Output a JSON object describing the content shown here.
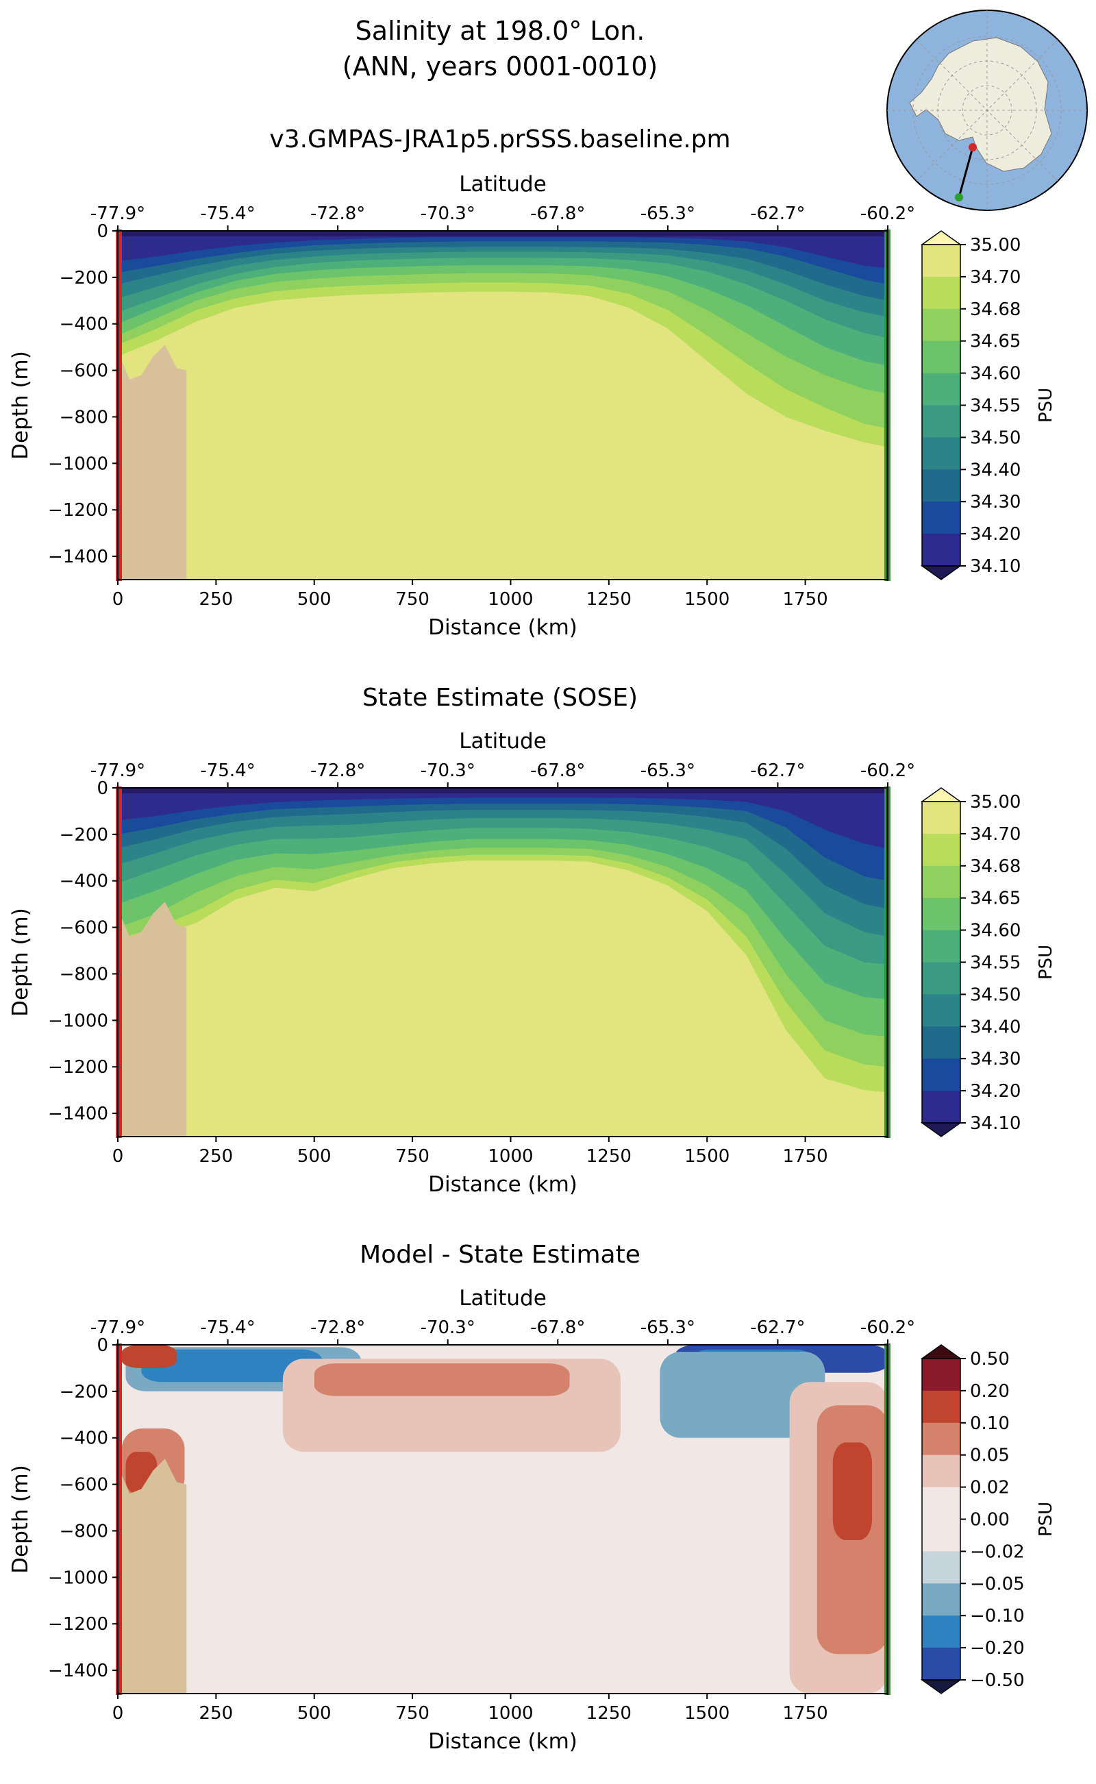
{
  "figure": {
    "title_line1": "Salinity at 198.0° Lon.",
    "title_line2": "(ANN, years 0001-0010)"
  },
  "inset_map": {
    "description_icon": "antarctica-polar-map",
    "colors": {
      "ocean": "#8eb3dd",
      "land": "#eeecdc",
      "start": "#d62728",
      "end": "#2ca02c"
    }
  },
  "axes_common": {
    "x_ticks": [
      "0",
      "250",
      "500",
      "750",
      "1000",
      "1250",
      "1500",
      "1750"
    ],
    "x_tick_values": [
      0,
      250,
      500,
      750,
      1000,
      1250,
      1500,
      1750
    ],
    "y_ticks": [
      "0",
      "−200",
      "−400",
      "−600",
      "−800",
      "−1000",
      "−1200",
      "−1400"
    ],
    "y_tick_values": [
      0,
      -200,
      -400,
      -600,
      -800,
      -1000,
      -1200,
      -1400
    ],
    "lat_ticks": [
      "-77.9°",
      "-75.4°",
      "-72.8°",
      "-70.3°",
      "-67.8°",
      "-65.3°",
      "-62.7°",
      "-60.2°"
    ],
    "lat_tick_values": [
      0,
      280,
      560,
      840,
      1120,
      1400,
      1680,
      1960
    ],
    "xlabel": "Distance (km)",
    "ylabel": "Depth (m)",
    "toplabel": "Latitude",
    "xlim": [
      0,
      1960
    ],
    "ylim": [
      -1500,
      0
    ]
  },
  "chart_data": [
    {
      "type": "heatmap",
      "title": "v3.GMPAS-JRA1p5.prSSS.baseline.pm",
      "colorbar": {
        "label": "PSU",
        "ticks": [
          "35.00",
          "34.70",
          "34.68",
          "34.65",
          "34.60",
          "34.55",
          "34.50",
          "34.40",
          "34.30",
          "34.20",
          "34.10"
        ],
        "levels": [
          35.0,
          34.7,
          34.68,
          34.65,
          34.6,
          34.55,
          34.5,
          34.4,
          34.3,
          34.2,
          34.1
        ],
        "colors": [
          "#e2e57f",
          "#b9dd5b",
          "#8fd05e",
          "#6bc36b",
          "#4db07a",
          "#3a9a82",
          "#2c8489",
          "#206a8c",
          "#1a4a9c",
          "#2d2b8e"
        ],
        "extend_top": "#fcf6b1",
        "extend_bottom": "#1f1a55"
      },
      "isohalines_depth_m": {
        "x_km": [
          0,
          100,
          200,
          300,
          400,
          500,
          600,
          700,
          800,
          900,
          1000,
          1100,
          1200,
          1300,
          1400,
          1500,
          1600,
          1700,
          1800,
          1900,
          1960
        ],
        "levels": [
          [
            -60,
            -40,
            -25,
            -15,
            -10,
            -5,
            -5,
            -5,
            -5,
            -5,
            -5,
            -5,
            -5,
            -5,
            -5,
            -8,
            -10,
            -20,
            -30,
            -45,
            -50
          ],
          [
            -130,
            -110,
            -85,
            -65,
            -50,
            -40,
            -35,
            -30,
            -28,
            -28,
            -28,
            -28,
            -28,
            -28,
            -30,
            -35,
            -45,
            -70,
            -110,
            -150,
            -160
          ],
          [
            -180,
            -150,
            -120,
            -95,
            -75,
            -62,
            -55,
            -50,
            -47,
            -45,
            -45,
            -45,
            -45,
            -47,
            -50,
            -60,
            -75,
            -110,
            -160,
            -210,
            -230
          ],
          [
            -230,
            -190,
            -150,
            -120,
            -98,
            -85,
            -77,
            -72,
            -70,
            -68,
            -68,
            -68,
            -70,
            -72,
            -78,
            -95,
            -120,
            -170,
            -230,
            -280,
            -300
          ],
          [
            -290,
            -240,
            -190,
            -150,
            -125,
            -110,
            -100,
            -95,
            -92,
            -90,
            -90,
            -90,
            -92,
            -96,
            -105,
            -130,
            -170,
            -230,
            -300,
            -350,
            -370
          ],
          [
            -350,
            -290,
            -230,
            -185,
            -155,
            -138,
            -128,
            -122,
            -118,
            -115,
            -115,
            -116,
            -118,
            -125,
            -140,
            -175,
            -230,
            -300,
            -380,
            -440,
            -460
          ],
          [
            -400,
            -330,
            -265,
            -215,
            -185,
            -170,
            -160,
            -155,
            -150,
            -148,
            -148,
            -148,
            -152,
            -165,
            -195,
            -250,
            -320,
            -410,
            -500,
            -560,
            -580
          ],
          [
            -450,
            -375,
            -300,
            -250,
            -220,
            -205,
            -195,
            -190,
            -185,
            -182,
            -182,
            -183,
            -190,
            -215,
            -260,
            -340,
            -440,
            -540,
            -620,
            -680,
            -700
          ],
          [
            -490,
            -420,
            -340,
            -290,
            -260,
            -245,
            -235,
            -230,
            -225,
            -222,
            -222,
            -225,
            -235,
            -270,
            -340,
            -450,
            -570,
            -680,
            -760,
            -830,
            -850
          ],
          [
            -540,
            -470,
            -390,
            -330,
            -300,
            -285,
            -275,
            -270,
            -265,
            -262,
            -262,
            -265,
            -280,
            -330,
            -420,
            -560,
            -700,
            -800,
            -860,
            -910,
            -930
          ]
        ]
      },
      "bathymetry_depth_m": {
        "x_km": [
          0,
          30,
          60,
          90,
          120,
          150,
          175
        ],
        "depth": [
          -520,
          -640,
          -620,
          -540,
          -490,
          -590,
          -600
        ]
      }
    },
    {
      "type": "heatmap",
      "title": "State Estimate (SOSE)",
      "colorbar": {
        "label": "PSU",
        "ticks": [
          "35.00",
          "34.70",
          "34.68",
          "34.65",
          "34.60",
          "34.55",
          "34.50",
          "34.40",
          "34.30",
          "34.20",
          "34.10"
        ],
        "levels": [
          35.0,
          34.7,
          34.68,
          34.65,
          34.6,
          34.55,
          34.5,
          34.4,
          34.3,
          34.2,
          34.1
        ],
        "colors": [
          "#e2e57f",
          "#b9dd5b",
          "#8fd05e",
          "#6bc36b",
          "#4db07a",
          "#3a9a82",
          "#2c8489",
          "#206a8c",
          "#1a4a9c",
          "#2d2b8e"
        ],
        "extend_top": "#fcf6b1",
        "extend_bottom": "#1f1a55"
      },
      "isohalines_depth_m": {
        "x_km": [
          0,
          100,
          200,
          300,
          400,
          500,
          600,
          700,
          800,
          900,
          1000,
          1100,
          1200,
          1300,
          1400,
          1500,
          1600,
          1700,
          1800,
          1900,
          1960
        ],
        "levels": [
          [
            -60,
            -45,
            -30,
            -20,
            -15,
            -10,
            -8,
            -7,
            -7,
            -7,
            -7,
            -7,
            -7,
            -7,
            -7,
            -8,
            -10,
            -20,
            -40,
            -70,
            -80
          ],
          [
            -140,
            -120,
            -95,
            -75,
            -62,
            -55,
            -50,
            -46,
            -44,
            -42,
            -42,
            -42,
            -42,
            -43,
            -46,
            -52,
            -60,
            -100,
            -180,
            -240,
            -260
          ],
          [
            -200,
            -170,
            -135,
            -110,
            -92,
            -85,
            -80,
            -74,
            -70,
            -68,
            -68,
            -68,
            -68,
            -70,
            -75,
            -85,
            -100,
            -170,
            -300,
            -380,
            -400
          ],
          [
            -260,
            -220,
            -175,
            -145,
            -125,
            -118,
            -112,
            -104,
            -98,
            -95,
            -95,
            -95,
            -96,
            -100,
            -108,
            -125,
            -150,
            -260,
            -420,
            -500,
            -520
          ],
          [
            -330,
            -280,
            -225,
            -190,
            -168,
            -162,
            -158,
            -146,
            -136,
            -130,
            -130,
            -130,
            -132,
            -140,
            -155,
            -180,
            -220,
            -370,
            -540,
            -620,
            -640
          ],
          [
            -410,
            -350,
            -290,
            -245,
            -220,
            -218,
            -212,
            -196,
            -182,
            -172,
            -172,
            -172,
            -176,
            -190,
            -215,
            -255,
            -320,
            -500,
            -680,
            -750,
            -760
          ],
          [
            -500,
            -440,
            -370,
            -310,
            -282,
            -285,
            -270,
            -250,
            -232,
            -220,
            -220,
            -220,
            -225,
            -245,
            -285,
            -345,
            -440,
            -650,
            -840,
            -900,
            -910
          ],
          [
            -600,
            -540,
            -450,
            -380,
            -340,
            -350,
            -320,
            -290,
            -270,
            -258,
            -258,
            -258,
            -262,
            -290,
            -340,
            -420,
            -540,
            -800,
            -1000,
            -1060,
            -1070
          ],
          [
            -650,
            -600,
            -530,
            -440,
            -395,
            -410,
            -360,
            -320,
            -300,
            -288,
            -288,
            -288,
            -292,
            -325,
            -385,
            -480,
            -640,
            -920,
            -1130,
            -1190,
            -1200
          ],
          [
            -680,
            -640,
            -580,
            -480,
            -430,
            -445,
            -390,
            -345,
            -325,
            -312,
            -312,
            -312,
            -318,
            -355,
            -420,
            -530,
            -720,
            -1040,
            -1250,
            -1300,
            -1310
          ]
        ]
      },
      "bathymetry_depth_m": {
        "x_km": [
          0,
          30,
          60,
          90,
          120,
          150,
          175
        ],
        "depth": [
          -520,
          -640,
          -620,
          -540,
          -490,
          -590,
          -600
        ]
      }
    },
    {
      "type": "heatmap",
      "title": "Model - State Estimate",
      "colorbar": {
        "label": "PSU",
        "ticks": [
          "0.50",
          "0.20",
          "0.10",
          "0.05",
          "0.02",
          "0.00",
          "−0.02",
          "−0.05",
          "−0.10",
          "−0.20",
          "−0.50"
        ],
        "levels": [
          0.5,
          0.2,
          0.1,
          0.05,
          0.02,
          0.0,
          -0.02,
          -0.05,
          -0.1,
          -0.2,
          -0.5
        ],
        "colors": [
          "#8b1a2b",
          "#c0452e",
          "#d4826c",
          "#e8c3b8",
          "#f1e8e5",
          "#f1e8e5",
          "#c6d4dc",
          "#7aaac3",
          "#2f82c0",
          "#2a4ca6"
        ],
        "extend_top": "#3d0a12",
        "extend_bottom": "#161a40",
        "background": "#f1e8e5"
      },
      "anomaly_regions": [
        {
          "kind": "neg",
          "level": -0.05,
          "x_km": [
            20,
            620
          ],
          "depth_m": [
            -10,
            -200
          ]
        },
        {
          "kind": "neg",
          "level": -0.1,
          "x_km": [
            60,
            520
          ],
          "depth_m": [
            -20,
            -160
          ]
        },
        {
          "kind": "neg",
          "level": -0.2,
          "x_km": [
            1420,
            1960
          ],
          "depth_m": [
            0,
            -120
          ]
        },
        {
          "kind": "neg",
          "level": -0.1,
          "x_km": [
            1450,
            1780
          ],
          "depth_m": [
            -20,
            -260
          ]
        },
        {
          "kind": "neg",
          "level": -0.05,
          "x_km": [
            1380,
            1800
          ],
          "depth_m": [
            -30,
            -400
          ]
        },
        {
          "kind": "pos",
          "level": 0.05,
          "x_km": [
            420,
            1280
          ],
          "depth_m": [
            -60,
            -460
          ]
        },
        {
          "kind": "pos",
          "level": 0.1,
          "x_km": [
            500,
            1150
          ],
          "depth_m": [
            -80,
            -220
          ]
        },
        {
          "kind": "pos",
          "level": 0.2,
          "x_km": [
            10,
            150
          ],
          "depth_m": [
            0,
            -100
          ]
        },
        {
          "kind": "pos",
          "level": 0.1,
          "x_km": [
            10,
            170
          ],
          "depth_m": [
            -360,
            -660
          ]
        },
        {
          "kind": "pos",
          "level": 0.2,
          "x_km": [
            20,
            100
          ],
          "depth_m": [
            -460,
            -640
          ]
        },
        {
          "kind": "pos",
          "level": 0.05,
          "x_km": [
            1710,
            1960
          ],
          "depth_m": [
            -160,
            -1500
          ]
        },
        {
          "kind": "pos",
          "level": 0.1,
          "x_km": [
            1780,
            1960
          ],
          "depth_m": [
            -260,
            -1330
          ]
        },
        {
          "kind": "pos",
          "level": 0.2,
          "x_km": [
            1820,
            1920
          ],
          "depth_m": [
            -420,
            -840
          ]
        }
      ],
      "bathymetry_depth_m": {
        "x_km": [
          0,
          30,
          60,
          90,
          120,
          150,
          175
        ],
        "depth": [
          -520,
          -640,
          -620,
          -540,
          -490,
          -590,
          -600
        ]
      }
    }
  ]
}
